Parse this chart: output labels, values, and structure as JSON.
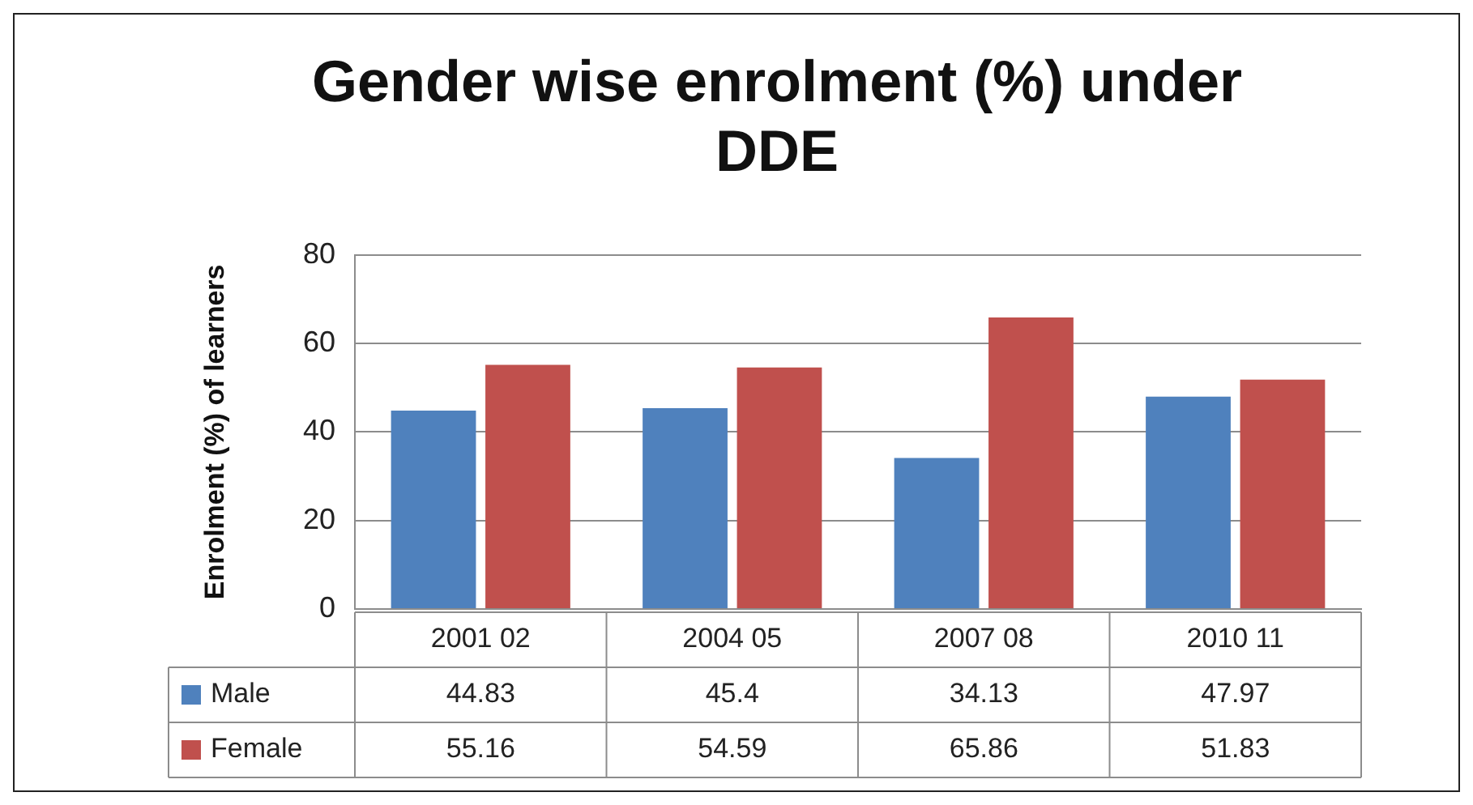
{
  "chart_data": {
    "type": "bar",
    "title": "Gender wise enrolment (%) under DDE",
    "ylabel": "Enrolment (%) of learners",
    "categories": [
      "2001 02",
      "2004 05",
      "2007 08",
      "2010 11"
    ],
    "series": [
      {
        "name": "Male",
        "color": "#4f81bd",
        "values": [
          44.83,
          45.4,
          34.13,
          47.97
        ]
      },
      {
        "name": "Female",
        "color": "#c0504d",
        "values": [
          55.16,
          54.59,
          65.86,
          51.83
        ]
      }
    ],
    "ylim": [
      0,
      80
    ],
    "yticks": [
      0,
      20,
      40,
      60,
      80
    ],
    "grid": "y",
    "legend": "bottom",
    "data_labels": true
  }
}
